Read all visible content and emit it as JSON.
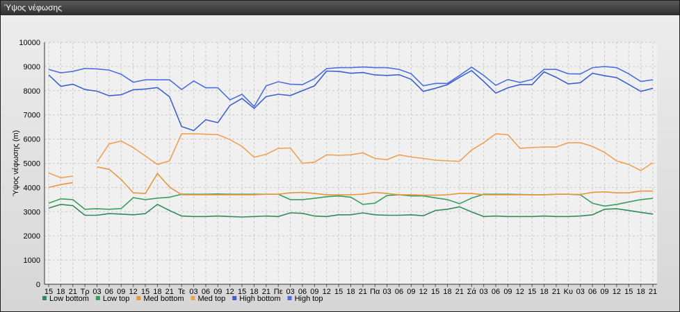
{
  "window": {
    "title": "Ύψος νέφωσης"
  },
  "chart_data": {
    "type": "line",
    "title": "",
    "xlabel": "",
    "ylabel": "Ύψος νέφωσης (m)",
    "ylim": [
      0,
      10000
    ],
    "yticks": [
      0,
      1000,
      2000,
      3000,
      4000,
      5000,
      6000,
      7000,
      8000,
      9000,
      10000
    ],
    "grid": true,
    "legend_position": "bottom-left",
    "categories": [
      "15",
      "18",
      "21",
      "Τρ",
      "03",
      "06",
      "09",
      "12",
      "15",
      "18",
      "21",
      "Τε",
      "03",
      "06",
      "09",
      "12",
      "15",
      "18",
      "21",
      "Πε",
      "03",
      "06",
      "09",
      "12",
      "15",
      "18",
      "21",
      "Πα",
      "03",
      "06",
      "09",
      "12",
      "15",
      "18",
      "21",
      "Σά",
      "03",
      "06",
      "09",
      "12",
      "15",
      "18",
      "21",
      "Κυ",
      "03",
      "06",
      "09",
      "12",
      "15",
      "18",
      "21"
    ],
    "series": [
      {
        "name": "Low bottom",
        "color": "#2e8b57",
        "values": [
          3150,
          3300,
          3250,
          2850,
          2850,
          2920,
          2900,
          2870,
          2920,
          3300,
          3050,
          2820,
          2800,
          2800,
          2820,
          2800,
          2780,
          2800,
          2820,
          2800,
          2950,
          2930,
          2820,
          2800,
          2870,
          2870,
          2950,
          2870,
          2850,
          2850,
          2870,
          2830,
          3050,
          3100,
          3200,
          2990,
          2800,
          2820,
          2800,
          2800,
          2800,
          2820,
          2800,
          2800,
          2820,
          2870,
          3100,
          3120,
          3050,
          2970,
          2900
        ]
      },
      {
        "name": "Low top",
        "color": "#3a9d5a",
        "values": [
          3350,
          3530,
          3500,
          3100,
          3120,
          3100,
          3130,
          3580,
          3500,
          3560,
          3600,
          3720,
          3720,
          3720,
          3730,
          3720,
          3720,
          3720,
          3720,
          3720,
          3500,
          3500,
          3550,
          3620,
          3650,
          3600,
          3300,
          3350,
          3670,
          3700,
          3650,
          3650,
          3570,
          3500,
          3330,
          3560,
          3720,
          3720,
          3720,
          3710,
          3700,
          3700,
          3720,
          3720,
          3700,
          3350,
          3230,
          3300,
          3400,
          3500,
          3550
        ]
      },
      {
        "name": "Med bottom",
        "color": "#e8963a",
        "values": [
          4000,
          4120,
          4200,
          null,
          4850,
          4750,
          4330,
          3780,
          3750,
          4580,
          4020,
          3700,
          3700,
          3700,
          3700,
          3700,
          3700,
          3700,
          3720,
          3720,
          3780,
          3800,
          3750,
          3700,
          3700,
          3700,
          3720,
          3800,
          3750,
          3700,
          3700,
          3680,
          3680,
          3700,
          3750,
          3750,
          3700,
          3700,
          3700,
          3700,
          3700,
          3700,
          3720,
          3720,
          3710,
          3800,
          3820,
          3780,
          3780,
          3850,
          3850
        ]
      },
      {
        "name": "Med top",
        "color": "#f0a050",
        "values": [
          4600,
          4400,
          4470,
          null,
          5050,
          5800,
          5920,
          5650,
          5300,
          4950,
          5100,
          6220,
          6220,
          6200,
          6180,
          5980,
          5700,
          5250,
          5370,
          5620,
          5630,
          5000,
          5050,
          5350,
          5330,
          5350,
          5430,
          5200,
          5150,
          5350,
          5260,
          5200,
          5130,
          5100,
          5080,
          5550,
          5850,
          6220,
          6180,
          5620,
          5650,
          5670,
          5670,
          5850,
          5850,
          5700,
          5450,
          5100,
          4950,
          4700,
          5030
        ]
      },
      {
        "name": "High bottom",
        "color": "#3c5fd0",
        "values": [
          8650,
          8180,
          8270,
          8050,
          7980,
          7790,
          7830,
          8040,
          8070,
          8130,
          7750,
          6520,
          6350,
          6800,
          6680,
          7390,
          7680,
          7270,
          7760,
          7850,
          7800,
          8000,
          8200,
          8810,
          8800,
          8720,
          8750,
          8650,
          8630,
          8660,
          8470,
          7970,
          8100,
          8250,
          8550,
          8830,
          8380,
          7900,
          8120,
          8250,
          8250,
          8780,
          8550,
          8280,
          8330,
          8720,
          8620,
          8540,
          8260,
          7970,
          8100
        ]
      },
      {
        "name": "High top",
        "color": "#4a6ee0",
        "values": [
          8880,
          8740,
          8800,
          8920,
          8900,
          8850,
          8680,
          8350,
          8450,
          8450,
          8450,
          8050,
          8400,
          8120,
          8120,
          7620,
          7850,
          7350,
          8200,
          8370,
          8270,
          8250,
          8500,
          8910,
          8950,
          8950,
          8980,
          8950,
          8950,
          8880,
          8700,
          8200,
          8300,
          8300,
          8630,
          8970,
          8630,
          8220,
          8460,
          8340,
          8460,
          8880,
          8880,
          8700,
          8690,
          8950,
          9000,
          8950,
          8700,
          8380,
          8450
        ]
      }
    ]
  }
}
